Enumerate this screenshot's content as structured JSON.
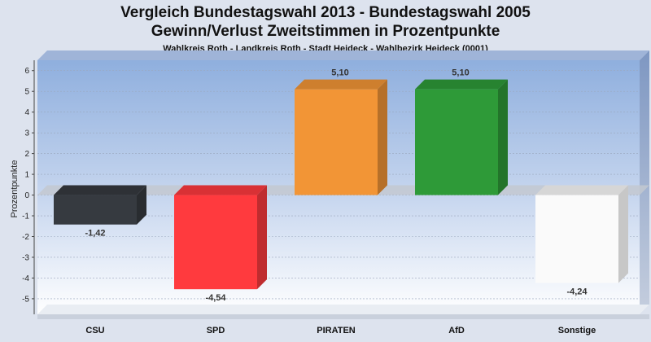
{
  "chart_data": {
    "type": "bar",
    "title_line1": "Vergleich Bundestagswahl 2013  - Bundestagswahl 2005",
    "title_line2": "Gewinn/Verlust Zweitstimmen in Prozentpunkte",
    "subtitle": "Wahlkreis Roth - Landkreis Roth - Stadt Heideck - Wahlbezirk Heideck (0001)",
    "ylabel": "Prozentpunkte",
    "ylim": [
      -5.75,
      6.5
    ],
    "yticks": [
      6,
      5,
      4,
      3,
      2,
      1,
      0,
      -1,
      -2,
      -3,
      -4,
      -5
    ],
    "grid": true,
    "categories": [
      "CSU",
      "SPD",
      "PIRATEN",
      "AfD",
      "Sonstige"
    ],
    "values": [
      -1.42,
      -4.54,
      5.1,
      5.1,
      -4.24
    ],
    "value_labels": [
      "-1,42",
      "-4,54",
      "5,10",
      "5,10",
      "-4,24"
    ],
    "colors": [
      "#363a40",
      "#ff3a3e",
      "#f29536",
      "#2e9a38",
      "#fafafa"
    ]
  }
}
